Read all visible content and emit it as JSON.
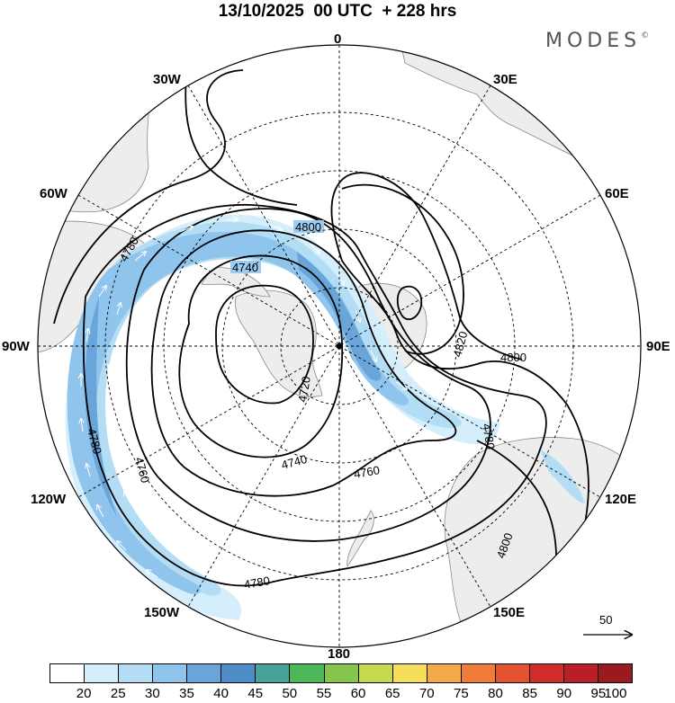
{
  "title": "13/10/2025  00 UTC  + 228 hrs",
  "brand": {
    "name": "MODES",
    "mark": "©"
  },
  "longitude_labels": {
    "lon_0": "0",
    "lon_30e": "30E",
    "lon_60e": "60E",
    "lon_90e": "90E",
    "lon_120e": "120E",
    "lon_150e": "150E",
    "lon_180": "180",
    "lon_150w": "150W",
    "lon_120w": "120W",
    "lon_90w": "90W",
    "lon_60w": "60W",
    "lon_30w": "30W"
  },
  "contour_labels": {
    "c1": "4800",
    "c2": "4740",
    "c3": "4780",
    "c4": "4720",
    "c5": "4740",
    "c6": "4760",
    "c7": "4760",
    "c8": "4780",
    "c9": "4780",
    "c10": "4820",
    "c11": "4800",
    "c12": "4780",
    "c13": "4800"
  },
  "wind_scale": {
    "value": "50"
  },
  "colorbar": {
    "ticks": [
      "20",
      "25",
      "30",
      "35",
      "40",
      "45",
      "50",
      "55",
      "60",
      "65",
      "70",
      "75",
      "80",
      "85",
      "90",
      "95",
      "100"
    ],
    "colors": [
      "#ffffff",
      "#d4eefb",
      "#b3dcf5",
      "#8fc4ec",
      "#6aa5da",
      "#4f8dc8",
      "#4aa39a",
      "#4db85a",
      "#84c54b",
      "#c7d94f",
      "#f6dd5a",
      "#f5aa4a",
      "#ef7d39",
      "#e5522f",
      "#d42c2a",
      "#bb1f26",
      "#9a1b1e"
    ]
  },
  "colors": {
    "land": "#ededed",
    "jet_light": "#cfe8f8",
    "jet_mid": "#9ccbef",
    "jet_dark": "#5f9fd9"
  }
}
